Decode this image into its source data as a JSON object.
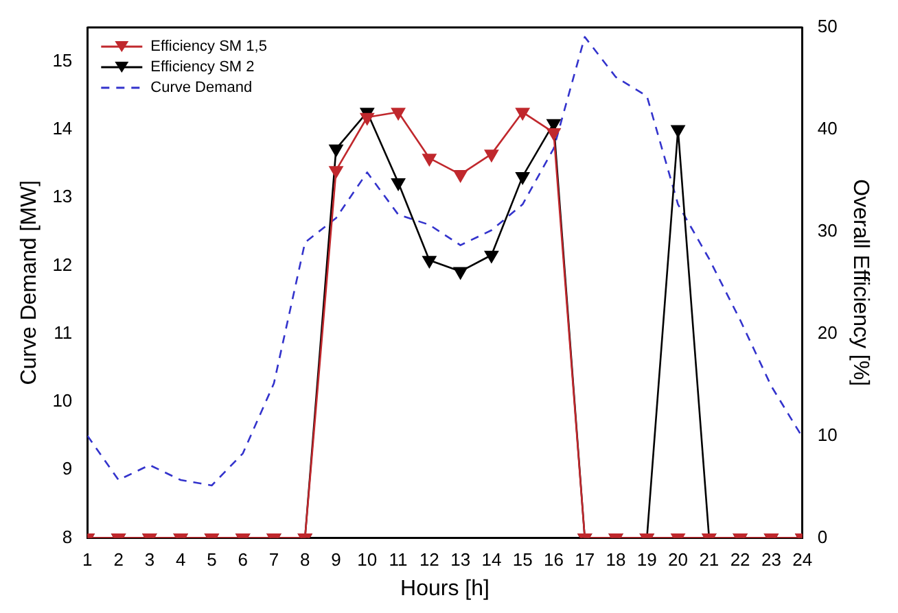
{
  "chart_data": {
    "type": "line",
    "xlabel": "Hours [h]",
    "ylabel": "Curve Demand [MW]",
    "y2label": "Overall Efficiency [%]",
    "x": [
      1,
      2,
      3,
      4,
      5,
      6,
      7,
      8,
      9,
      10,
      11,
      12,
      13,
      14,
      15,
      16,
      17,
      18,
      19,
      20,
      21,
      22,
      23,
      24
    ],
    "series": [
      {
        "name": "Efficiency SM 1,5",
        "color": "#c0282d",
        "axis": "y2",
        "marker": "triangle",
        "line_style": "solid",
        "values": [
          0,
          0,
          0,
          0,
          0,
          0,
          0,
          0,
          36.0,
          41.2,
          41.7,
          37.2,
          35.6,
          37.6,
          41.7,
          39.7,
          0,
          0,
          0,
          0,
          0,
          0,
          0,
          0
        ]
      },
      {
        "name": "Efficiency SM 2",
        "color": "#000000",
        "axis": "y2",
        "marker": "triangle",
        "line_style": "solid",
        "values": [
          0,
          0,
          0,
          0,
          0,
          0,
          0,
          0,
          38.1,
          41.7,
          34.8,
          27.2,
          26.1,
          27.7,
          35.4,
          40.6,
          0,
          0,
          0,
          40.0,
          0,
          0,
          0,
          0
        ]
      },
      {
        "name": "Curve Demand",
        "color": "#3333cc",
        "axis": "y",
        "marker": "none",
        "line_style": "dashed",
        "values": [
          9.5,
          8.85,
          9.07,
          8.85,
          8.77,
          9.24,
          10.27,
          12.34,
          12.7,
          13.37,
          12.75,
          12.6,
          12.3,
          12.52,
          12.9,
          13.72,
          15.36,
          14.77,
          14.49,
          12.9,
          12.1,
          11.2,
          10.23,
          9.48
        ]
      }
    ],
    "xlim": [
      1,
      24
    ],
    "xticks": [
      1,
      2,
      3,
      4,
      5,
      6,
      7,
      8,
      9,
      10,
      11,
      12,
      13,
      14,
      15,
      16,
      17,
      18,
      19,
      20,
      21,
      22,
      23,
      24
    ],
    "ylim": [
      8,
      15.5
    ],
    "yticks": [
      8,
      9,
      10,
      11,
      12,
      13,
      14,
      15
    ],
    "y2lim": [
      0,
      50
    ],
    "y2ticks": [
      0,
      10,
      20,
      30,
      40,
      50
    ],
    "grid": false,
    "legend": "top left"
  }
}
